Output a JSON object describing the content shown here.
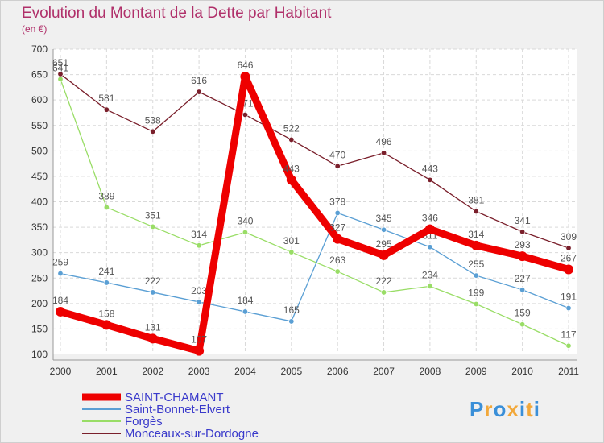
{
  "chart_data": {
    "type": "line",
    "title": "Evolution du Montant de la Dette par Habitant",
    "subtitle": "(en €)",
    "x": [
      "2000",
      "2001",
      "2002",
      "2003",
      "2004",
      "2005",
      "2006",
      "2007",
      "2008",
      "2009",
      "2010",
      "2011"
    ],
    "ylim": [
      100,
      700
    ],
    "yticks": [
      100,
      150,
      200,
      250,
      300,
      350,
      400,
      450,
      500,
      550,
      600,
      650,
      700
    ],
    "grid": true,
    "legend_position": "bottom-left",
    "series": [
      {
        "name": "SAINT-CHAMANT",
        "color": "#ee0000",
        "values": [
          184,
          158,
          131,
          107,
          646,
          443,
          327,
          295,
          346,
          314,
          293,
          267
        ]
      },
      {
        "name": "Saint-Bonnet-Elvert",
        "color": "#5a9fd4",
        "values": [
          259,
          241,
          222,
          203,
          184,
          165,
          378,
          345,
          311,
          255,
          227,
          191
        ]
      },
      {
        "name": "Forgès",
        "color": "#99dd66",
        "values": [
          641,
          389,
          351,
          314,
          340,
          301,
          263,
          222,
          234,
          199,
          159,
          117
        ]
      },
      {
        "name": "Monceaux-sur-Dordogne",
        "color": "#7a1f2b",
        "values": [
          651,
          581,
          538,
          616,
          571,
          522,
          470,
          496,
          443,
          381,
          341,
          309
        ]
      }
    ]
  },
  "logo": {
    "text": "Proxiti"
  }
}
